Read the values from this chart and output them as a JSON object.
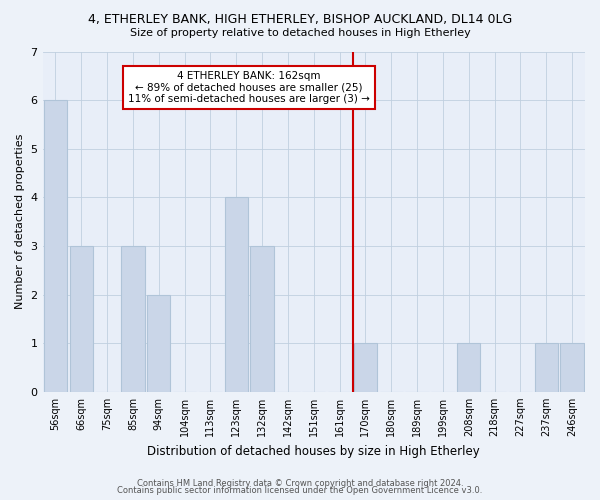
{
  "title": "4, ETHERLEY BANK, HIGH ETHERLEY, BISHOP AUCKLAND, DL14 0LG",
  "subtitle": "Size of property relative to detached houses in High Etherley",
  "xlabel": "Distribution of detached houses by size in High Etherley",
  "ylabel": "Number of detached properties",
  "bar_labels": [
    "56sqm",
    "66sqm",
    "75sqm",
    "85sqm",
    "94sqm",
    "104sqm",
    "113sqm",
    "123sqm",
    "132sqm",
    "142sqm",
    "151sqm",
    "161sqm",
    "170sqm",
    "180sqm",
    "189sqm",
    "199sqm",
    "208sqm",
    "218sqm",
    "227sqm",
    "237sqm",
    "246sqm"
  ],
  "bar_values": [
    6,
    3,
    0,
    3,
    2,
    0,
    0,
    4,
    3,
    0,
    0,
    0,
    1,
    0,
    0,
    0,
    1,
    0,
    0,
    1,
    1
  ],
  "bar_color": "#cad6e8",
  "bar_edge_color": "#b0c4d8",
  "vline_x": 11.5,
  "vline_color": "#cc0000",
  "annotation_text": "4 ETHERLEY BANK: 162sqm\n← 89% of detached houses are smaller (25)\n11% of semi-detached houses are larger (3) →",
  "annotation_box_color": "#ffffff",
  "annotation_box_edge": "#cc0000",
  "ylim": [
    0,
    7
  ],
  "yticks": [
    0,
    1,
    2,
    3,
    4,
    5,
    6,
    7
  ],
  "footer1": "Contains HM Land Registry data © Crown copyright and database right 2024.",
  "footer2": "Contains public sector information licensed under the Open Government Licence v3.0.",
  "bg_color": "#edf2f9",
  "plot_bg_color": "#e8eef8"
}
